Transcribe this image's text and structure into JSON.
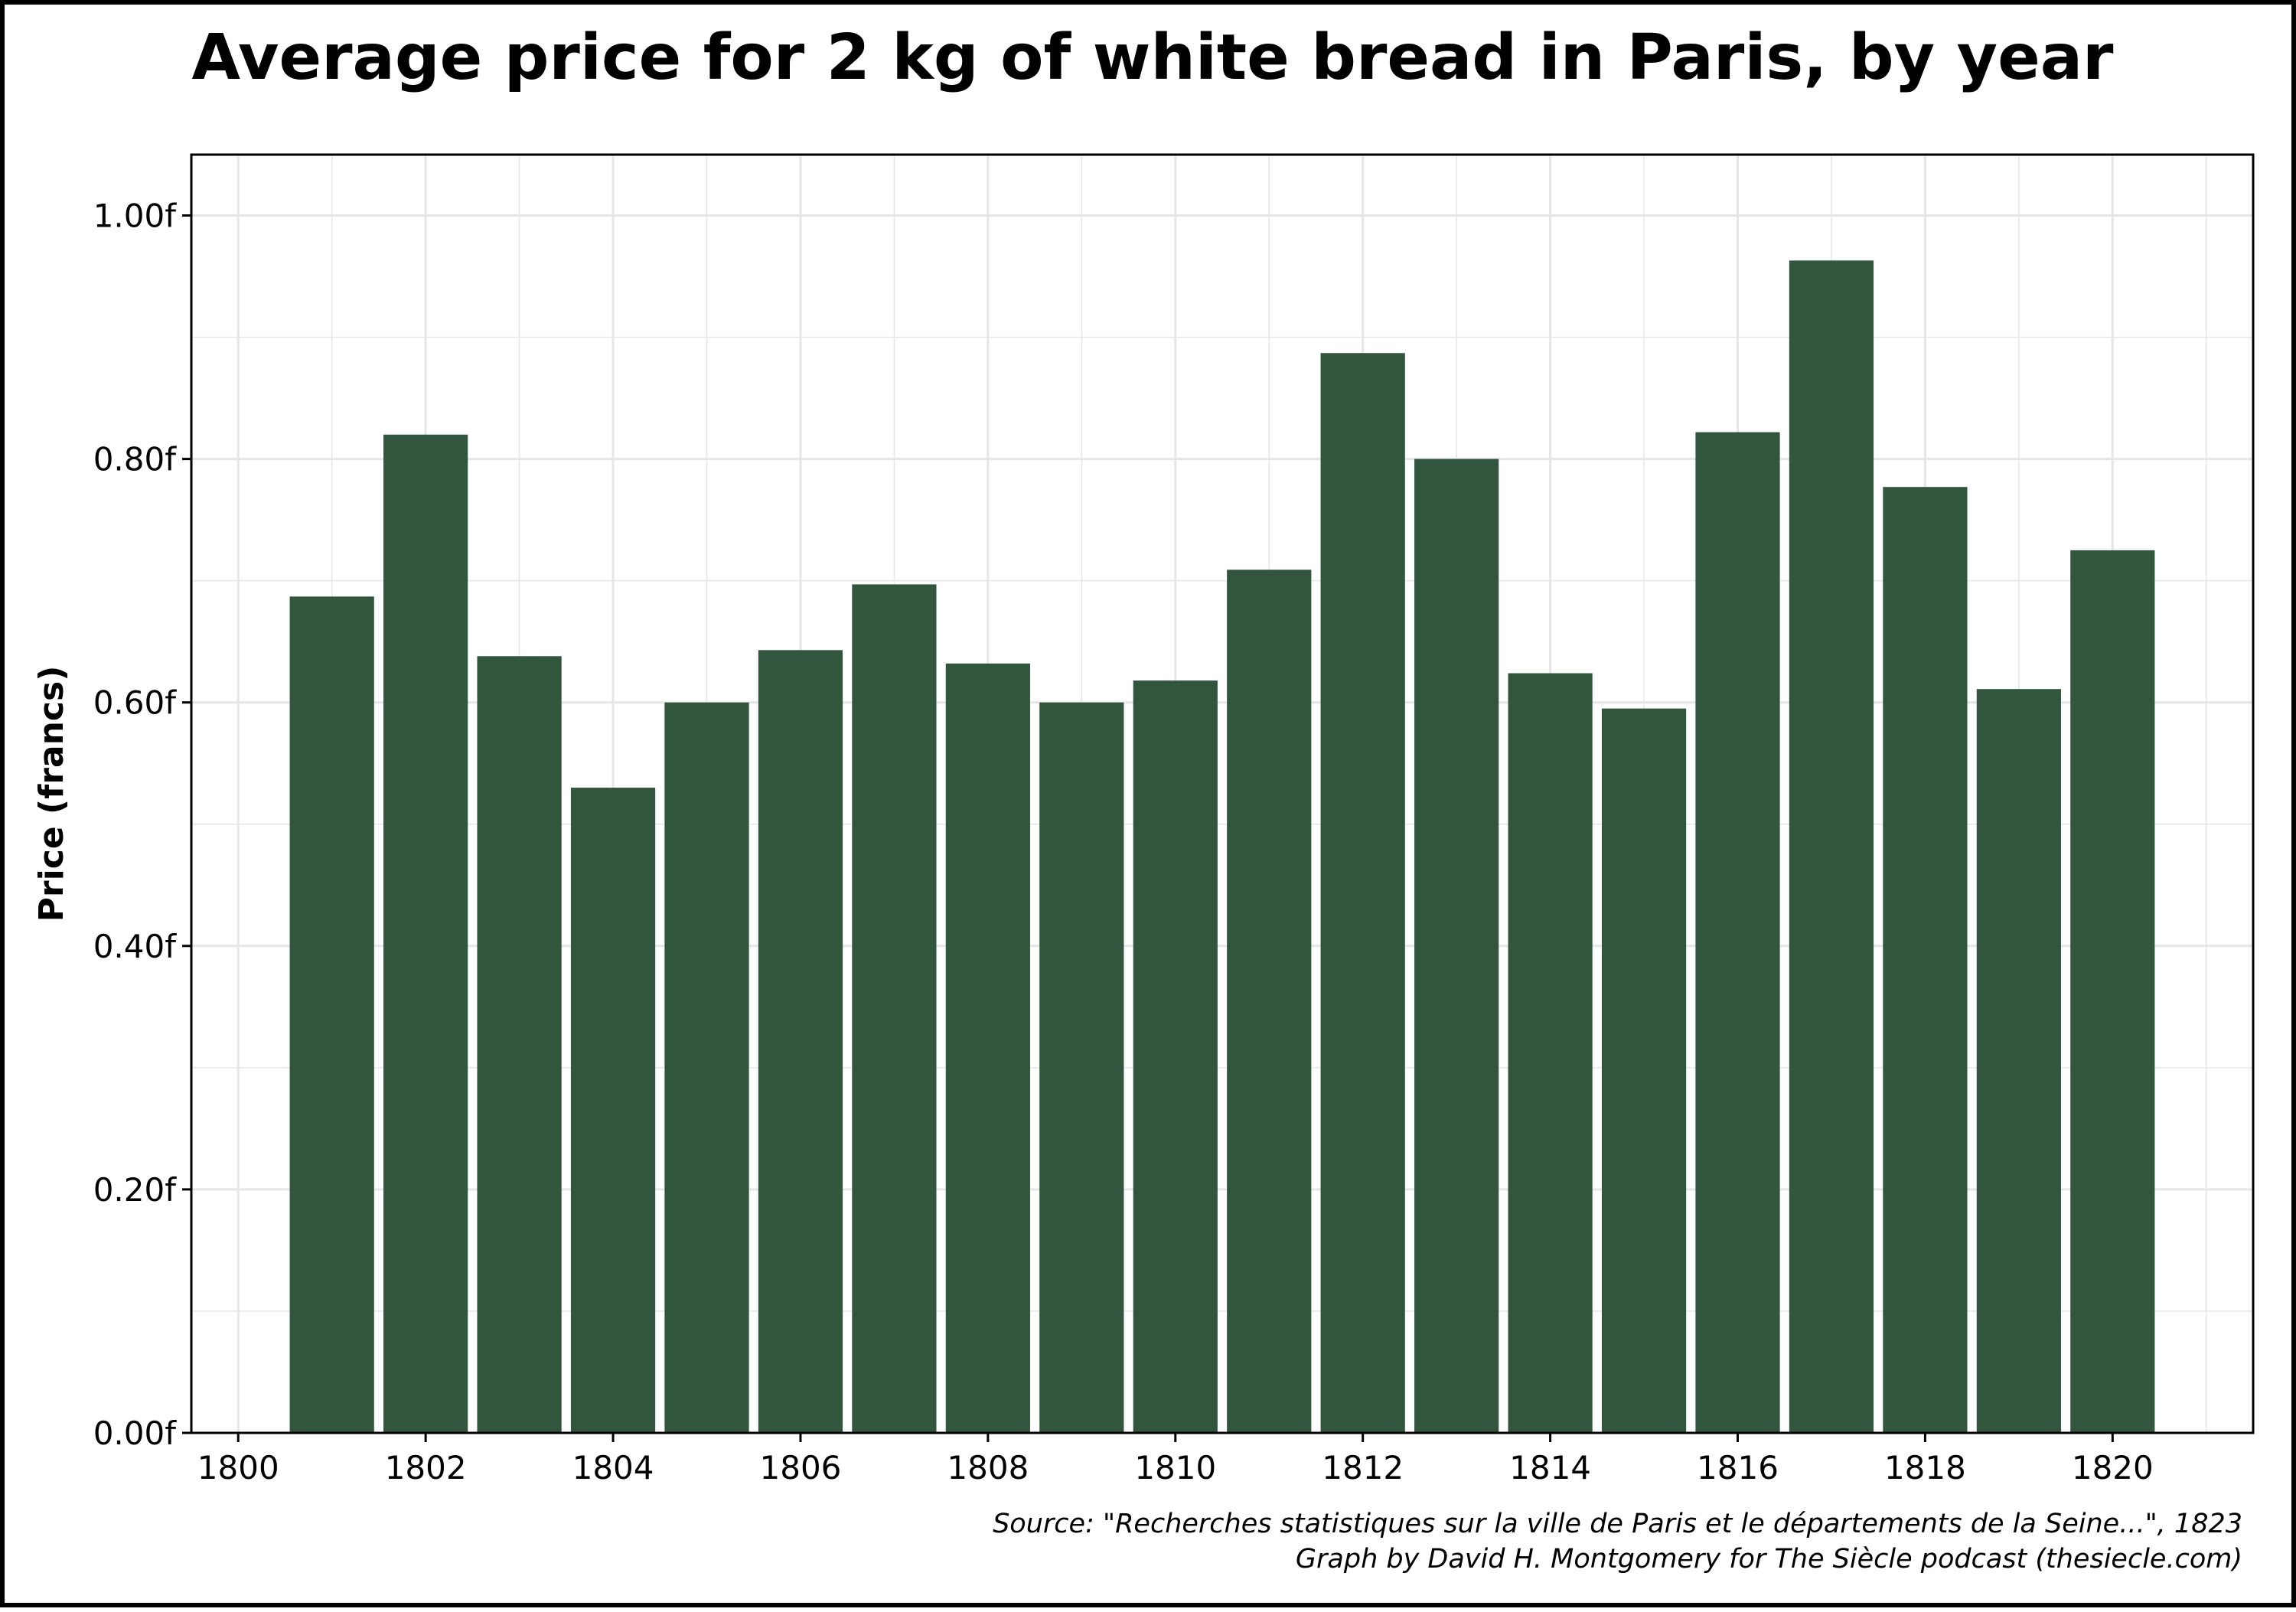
{
  "chart_data": {
    "type": "bar",
    "title": "Average price for 2 kg of white bread in Paris, by year",
    "ylabel": "Price (francs)",
    "xlabel": "",
    "x": [
      1801,
      1802,
      1803,
      1804,
      1805,
      1806,
      1807,
      1808,
      1809,
      1810,
      1811,
      1812,
      1813,
      1814,
      1815,
      1816,
      1817,
      1818,
      1819,
      1820
    ],
    "values": [
      0.687,
      0.82,
      0.638,
      0.53,
      0.6,
      0.643,
      0.697,
      0.632,
      0.6,
      0.618,
      0.709,
      0.887,
      0.8,
      0.624,
      0.595,
      0.822,
      0.963,
      0.777,
      0.611,
      0.725
    ],
    "xlim": [
      1799.5,
      1821.5
    ],
    "ylim": [
      0,
      1.05
    ],
    "x_ticks": [
      1800,
      1802,
      1804,
      1806,
      1808,
      1810,
      1812,
      1814,
      1816,
      1818,
      1820
    ],
    "y_ticks": [
      0,
      0.2,
      0.4,
      0.6,
      0.8,
      1.0
    ],
    "y_tick_labels": [
      "0.00f",
      "0.20f",
      "0.40f",
      "0.60f",
      "0.80f",
      "1.00f"
    ],
    "grid": true,
    "bar_color": "#32553d",
    "grid_color": "#e6e6e6"
  },
  "caption": {
    "source": "Source: \"Recherches statistiques sur la ville de Paris et le départements de la Seine...\", 1823",
    "credit": "Graph by David H. Montgomery for The Siècle podcast (thesiecle.com)"
  }
}
